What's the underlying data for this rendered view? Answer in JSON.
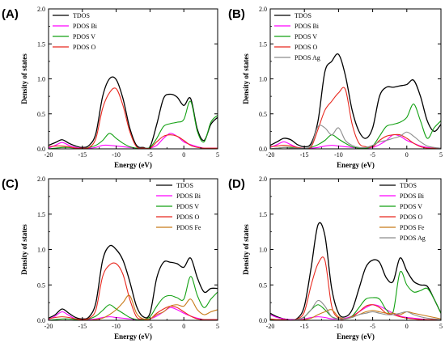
{
  "chart_data": [
    {
      "type": "line",
      "panel_label": "(A)",
      "xlabel": "Energy (eV)",
      "ylabel": "Density of states",
      "xlim": [
        -20,
        5
      ],
      "ylim": [
        0,
        2.0
      ],
      "xticks": [
        -20,
        -15,
        -10,
        -5,
        0,
        5
      ],
      "yticks": [
        0.0,
        0.5,
        1.0,
        1.5,
        2.0
      ],
      "x": [
        -20,
        -19,
        -18,
        -17,
        -16,
        -15,
        -14,
        -13,
        -12,
        -11,
        -10,
        -9,
        -8,
        -7,
        -6,
        -5,
        -4,
        -3,
        -2,
        -1,
        0,
        1,
        2,
        3,
        4,
        5
      ],
      "grid": false,
      "legend_position": "top-left",
      "series": [
        {
          "name": "TDOS",
          "color": "#000000",
          "values": [
            0.05,
            0.09,
            0.13,
            0.08,
            0.04,
            0.02,
            0.05,
            0.22,
            0.75,
            1.0,
            0.99,
            0.72,
            0.3,
            0.05,
            0.02,
            0.03,
            0.35,
            0.72,
            0.78,
            0.74,
            0.62,
            0.72,
            0.28,
            0.12,
            0.35,
            0.45
          ]
        },
        {
          "name": "PDOS Bi",
          "color": "#ff00ff",
          "values": [
            0.01,
            0.05,
            0.09,
            0.05,
            0.02,
            0.01,
            0.01,
            0.02,
            0.05,
            0.05,
            0.04,
            0.03,
            0.02,
            0.01,
            0.01,
            0.01,
            0.05,
            0.15,
            0.22,
            0.18,
            0.1,
            0.06,
            0.03,
            0.01,
            0.01,
            0.01
          ]
        },
        {
          "name": "PDOS V",
          "color": "#13a113",
          "values": [
            0.0,
            0.01,
            0.02,
            0.02,
            0.01,
            0.0,
            0.02,
            0.05,
            0.12,
            0.22,
            0.15,
            0.08,
            0.03,
            0.01,
            0.01,
            0.02,
            0.15,
            0.32,
            0.36,
            0.38,
            0.42,
            0.68,
            0.25,
            0.1,
            0.38,
            0.48
          ]
        },
        {
          "name": "PDOS O",
          "color": "#e8281e",
          "values": [
            0.03,
            0.04,
            0.04,
            0.03,
            0.01,
            0.01,
            0.02,
            0.15,
            0.58,
            0.8,
            0.86,
            0.62,
            0.25,
            0.03,
            0.01,
            0.01,
            0.1,
            0.18,
            0.2,
            0.18,
            0.12,
            0.05,
            0.02,
            0.01,
            0.01,
            0.01
          ]
        }
      ]
    },
    {
      "type": "line",
      "panel_label": "(B)",
      "xlabel": "Energy (eV)",
      "ylabel": "Density of states",
      "xlim": [
        -20,
        5
      ],
      "ylim": [
        0,
        2.0
      ],
      "xticks": [
        -20,
        -15,
        -10,
        -5,
        0,
        5
      ],
      "yticks": [
        0.0,
        0.5,
        1.0,
        1.5,
        2.0
      ],
      "x": [
        -20,
        -19,
        -18,
        -17,
        -16,
        -15,
        -14,
        -13,
        -12,
        -11,
        -10,
        -9,
        -8,
        -7,
        -6,
        -5,
        -4,
        -3,
        -2,
        -1,
        0,
        1,
        2,
        3,
        4,
        5
      ],
      "grid": false,
      "legend_position": "top-left",
      "series": [
        {
          "name": "TDOS",
          "color": "#000000",
          "values": [
            0.05,
            0.1,
            0.15,
            0.13,
            0.06,
            0.03,
            0.08,
            0.4,
            1.1,
            1.25,
            1.35,
            1.05,
            0.55,
            0.25,
            0.15,
            0.3,
            0.75,
            0.88,
            0.88,
            0.9,
            0.92,
            0.98,
            0.75,
            0.4,
            0.25,
            0.35
          ]
        },
        {
          "name": "PDOS Bi",
          "color": "#ff00ff",
          "values": [
            0.02,
            0.06,
            0.1,
            0.06,
            0.02,
            0.01,
            0.01,
            0.02,
            0.04,
            0.05,
            0.04,
            0.03,
            0.02,
            0.01,
            0.01,
            0.02,
            0.06,
            0.12,
            0.2,
            0.18,
            0.12,
            0.08,
            0.04,
            0.02,
            0.01,
            0.01
          ]
        },
        {
          "name": "PDOS V",
          "color": "#13a113",
          "values": [
            0.0,
            0.01,
            0.02,
            0.02,
            0.01,
            0.0,
            0.02,
            0.06,
            0.12,
            0.2,
            0.14,
            0.08,
            0.03,
            0.01,
            0.01,
            0.04,
            0.18,
            0.32,
            0.35,
            0.38,
            0.45,
            0.64,
            0.4,
            0.15,
            0.3,
            0.4
          ]
        },
        {
          "name": "PDOS O",
          "color": "#e8281e",
          "values": [
            0.03,
            0.04,
            0.05,
            0.04,
            0.02,
            0.01,
            0.03,
            0.28,
            0.55,
            0.68,
            0.8,
            0.85,
            0.35,
            0.08,
            0.03,
            0.03,
            0.12,
            0.18,
            0.2,
            0.2,
            0.15,
            0.08,
            0.03,
            0.01,
            0.01,
            0.01
          ]
        },
        {
          "name": "PDOS Ag",
          "color": "#8c8c8c",
          "values": [
            0.0,
            0.01,
            0.02,
            0.01,
            0.01,
            0.01,
            0.05,
            0.32,
            0.3,
            0.2,
            0.3,
            0.12,
            0.05,
            0.02,
            0.02,
            0.05,
            0.1,
            0.12,
            0.15,
            0.18,
            0.24,
            0.18,
            0.1,
            0.04,
            0.02,
            0.01
          ]
        }
      ]
    },
    {
      "type": "line",
      "panel_label": "(C)",
      "xlabel": "Energy (eV)",
      "ylabel": "Density of states",
      "xlim": [
        -20,
        5
      ],
      "ylim": [
        0,
        2.0
      ],
      "xticks": [
        -20,
        -15,
        -10,
        -5,
        0,
        5
      ],
      "yticks": [
        0.0,
        0.5,
        1.0,
        1.5,
        2.0
      ],
      "x": [
        -20,
        -19,
        -18,
        -17,
        -16,
        -15,
        -14,
        -13,
        -12,
        -11,
        -10,
        -9,
        -8,
        -7,
        -6,
        -5,
        -4,
        -3,
        -2,
        -1,
        0,
        1,
        2,
        3,
        4,
        5
      ],
      "grid": false,
      "legend_position": "top-right",
      "series": [
        {
          "name": "TDOS",
          "color": "#000000",
          "values": [
            0.03,
            0.08,
            0.16,
            0.1,
            0.04,
            0.02,
            0.05,
            0.25,
            0.85,
            1.05,
            1.0,
            0.85,
            0.55,
            0.2,
            0.05,
            0.1,
            0.6,
            0.82,
            0.82,
            0.8,
            0.75,
            0.88,
            0.6,
            0.4,
            0.45,
            0.45
          ]
        },
        {
          "name": "PDOS Bi",
          "color": "#ff00ff",
          "values": [
            0.01,
            0.06,
            0.12,
            0.07,
            0.02,
            0.01,
            0.01,
            0.02,
            0.04,
            0.05,
            0.04,
            0.03,
            0.02,
            0.01,
            0.01,
            0.02,
            0.06,
            0.12,
            0.18,
            0.15,
            0.1,
            0.06,
            0.03,
            0.01,
            0.01,
            0.01
          ]
        },
        {
          "name": "PDOS V",
          "color": "#13a113",
          "values": [
            0.0,
            0.01,
            0.02,
            0.02,
            0.01,
            0.0,
            0.02,
            0.06,
            0.14,
            0.22,
            0.16,
            0.1,
            0.04,
            0.01,
            0.01,
            0.05,
            0.2,
            0.32,
            0.35,
            0.32,
            0.3,
            0.62,
            0.35,
            0.18,
            0.3,
            0.4
          ]
        },
        {
          "name": "PDOS O",
          "color": "#e8281e",
          "values": [
            0.02,
            0.04,
            0.05,
            0.04,
            0.02,
            0.01,
            0.03,
            0.15,
            0.62,
            0.78,
            0.8,
            0.65,
            0.3,
            0.05,
            0.02,
            0.02,
            0.1,
            0.16,
            0.2,
            0.18,
            0.12,
            0.06,
            0.02,
            0.01,
            0.01,
            0.01
          ]
        },
        {
          "name": "PDOS Fe",
          "color": "#c87a18",
          "values": [
            0.0,
            0.0,
            0.0,
            0.0,
            0.0,
            0.0,
            0.0,
            0.01,
            0.03,
            0.08,
            0.15,
            0.25,
            0.35,
            0.1,
            0.02,
            0.02,
            0.08,
            0.12,
            0.2,
            0.22,
            0.2,
            0.3,
            0.15,
            0.08,
            0.12,
            0.15
          ]
        }
      ]
    },
    {
      "type": "line",
      "panel_label": "(D)",
      "xlabel": "Energy (eV)",
      "ylabel": "Density of states",
      "xlim": [
        -20,
        5
      ],
      "ylim": [
        0,
        2.0
      ],
      "xticks": [
        -20,
        -15,
        -10,
        -5,
        0,
        5
      ],
      "yticks": [
        0.0,
        0.5,
        1.0,
        1.5,
        2.0
      ],
      "x": [
        -20,
        -19,
        -18,
        -17,
        -16,
        -15,
        -14,
        -13,
        -12,
        -11,
        -10,
        -9,
        -8,
        -7,
        -6,
        -5,
        -4,
        -3,
        -2,
        -1,
        0,
        1,
        2,
        3,
        4,
        5
      ],
      "grid": false,
      "legend_position": "top-right",
      "series": [
        {
          "name": "TDOS",
          "color": "#000000",
          "values": [
            0.1,
            0.05,
            0.02,
            0.01,
            0.03,
            0.2,
            0.75,
            1.35,
            1.2,
            0.45,
            0.1,
            0.05,
            0.15,
            0.45,
            0.75,
            0.85,
            0.82,
            0.6,
            0.55,
            0.88,
            0.7,
            0.55,
            0.5,
            0.48,
            0.3,
            0.1
          ]
        },
        {
          "name": "PDOS Bi",
          "color": "#ff00ff",
          "values": [
            0.08,
            0.04,
            0.02,
            0.01,
            0.01,
            0.02,
            0.04,
            0.05,
            0.04,
            0.02,
            0.02,
            0.03,
            0.06,
            0.12,
            0.18,
            0.22,
            0.2,
            0.15,
            0.1,
            0.06,
            0.04,
            0.03,
            0.02,
            0.01,
            0.01,
            0.01
          ]
        },
        {
          "name": "PDOS V",
          "color": "#13a113",
          "values": [
            0.01,
            0.01,
            0.01,
            0.0,
            0.01,
            0.05,
            0.15,
            0.22,
            0.15,
            0.05,
            0.02,
            0.02,
            0.06,
            0.18,
            0.3,
            0.32,
            0.3,
            0.15,
            0.12,
            0.68,
            0.5,
            0.4,
            0.42,
            0.45,
            0.3,
            0.1
          ]
        },
        {
          "name": "PDOS O",
          "color": "#e8281e",
          "values": [
            0.02,
            0.01,
            0.01,
            0.0,
            0.02,
            0.12,
            0.5,
            0.8,
            0.85,
            0.2,
            0.03,
            0.02,
            0.05,
            0.12,
            0.2,
            0.22,
            0.18,
            0.1,
            0.08,
            0.05,
            0.03,
            0.02,
            0.01,
            0.01,
            0.01,
            0.01
          ]
        },
        {
          "name": "PDOS Fe",
          "color": "#c87a18",
          "values": [
            0.0,
            0.0,
            0.0,
            0.0,
            0.0,
            0.01,
            0.03,
            0.08,
            0.12,
            0.15,
            0.05,
            0.02,
            0.05,
            0.08,
            0.12,
            0.14,
            0.12,
            0.1,
            0.1,
            0.08,
            0.12,
            0.1,
            0.08,
            0.06,
            0.04,
            0.02
          ]
        },
        {
          "name": "PDOS Ag",
          "color": "#8c8c8c",
          "values": [
            0.0,
            0.0,
            0.0,
            0.0,
            0.01,
            0.05,
            0.15,
            0.28,
            0.2,
            0.05,
            0.02,
            0.02,
            0.04,
            0.08,
            0.1,
            0.12,
            0.1,
            0.08,
            0.08,
            0.1,
            0.12,
            0.08,
            0.05,
            0.03,
            0.02,
            0.01
          ]
        }
      ]
    }
  ]
}
